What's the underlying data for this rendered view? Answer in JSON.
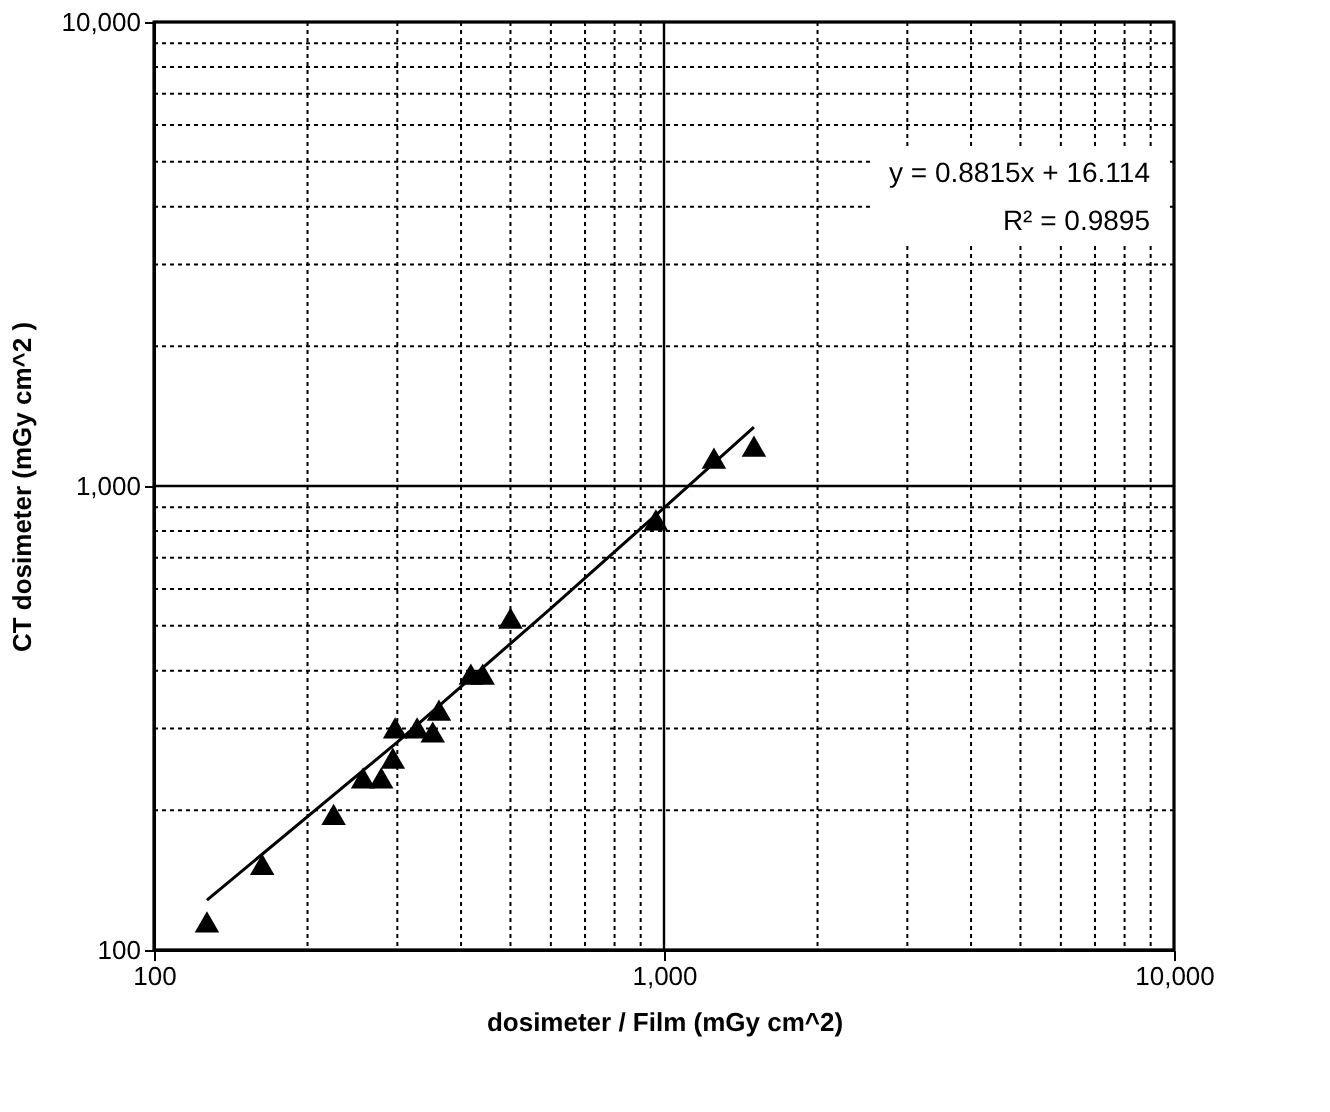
{
  "chart_data": {
    "type": "scatter",
    "xlabel": "dosimeter / Film (mGy cm^2)",
    "ylabel": "CT dosimeter (mGy cm^2 )",
    "annotations": [
      "y = 0.8815x + 16.114",
      "R² = 0.9895"
    ],
    "log": "xy",
    "grid": true,
    "marker": "triangle",
    "xlim": [
      100,
      10000
    ],
    "ylim": [
      100,
      10000
    ],
    "xticks": [
      {
        "value": 100,
        "label": "100"
      },
      {
        "value": 200,
        "label": null
      },
      {
        "value": 300,
        "label": null
      },
      {
        "value": 400,
        "label": null
      },
      {
        "value": 500,
        "label": null
      },
      {
        "value": 600,
        "label": null
      },
      {
        "value": 700,
        "label": null
      },
      {
        "value": 800,
        "label": null
      },
      {
        "value": 900,
        "label": null
      },
      {
        "value": 1000,
        "label": "1,000"
      },
      {
        "value": 2000,
        "label": null
      },
      {
        "value": 3000,
        "label": null
      },
      {
        "value": 4000,
        "label": null
      },
      {
        "value": 5000,
        "label": null
      },
      {
        "value": 6000,
        "label": null
      },
      {
        "value": 7000,
        "label": null
      },
      {
        "value": 8000,
        "label": null
      },
      {
        "value": 9000,
        "label": null
      },
      {
        "value": 10000,
        "label": "10,000"
      }
    ],
    "yticks": [
      {
        "value": 100,
        "label": "100"
      },
      {
        "value": 200,
        "label": null
      },
      {
        "value": 300,
        "label": null
      },
      {
        "value": 400,
        "label": null
      },
      {
        "value": 500,
        "label": null
      },
      {
        "value": 600,
        "label": null
      },
      {
        "value": 700,
        "label": null
      },
      {
        "value": 800,
        "label": null
      },
      {
        "value": 900,
        "label": null
      },
      {
        "value": 1000,
        "label": "1,000"
      },
      {
        "value": 2000,
        "label": null
      },
      {
        "value": 3000,
        "label": null
      },
      {
        "value": 4000,
        "label": null
      },
      {
        "value": 5000,
        "label": null
      },
      {
        "value": 6000,
        "label": null
      },
      {
        "value": 7000,
        "label": null
      },
      {
        "value": 8000,
        "label": null
      },
      {
        "value": 9000,
        "label": null
      },
      {
        "value": 10000,
        "label": "10,000"
      }
    ],
    "series": [
      {
        "color": "#000000",
        "x": [
          127,
          163,
          225,
          257,
          279,
          294,
          297,
          328,
          352,
          362,
          418,
          441,
          500,
          964,
          1253,
          1501
        ],
        "values": [
          115,
          153,
          196,
          235,
          235,
          259,
          301,
          301,
          295,
          329,
          393,
          393,
          519,
          845,
          1148,
          1219
        ]
      },
      {
        "type": "line",
        "color": "#000000",
        "line_style": "solid",
        "marker": "none",
        "x": [
          127,
          300,
          600,
          1000,
          1501
        ],
        "values": [
          128.1,
          280.6,
          545.0,
          897.6,
          1339.2
        ]
      }
    ]
  }
}
